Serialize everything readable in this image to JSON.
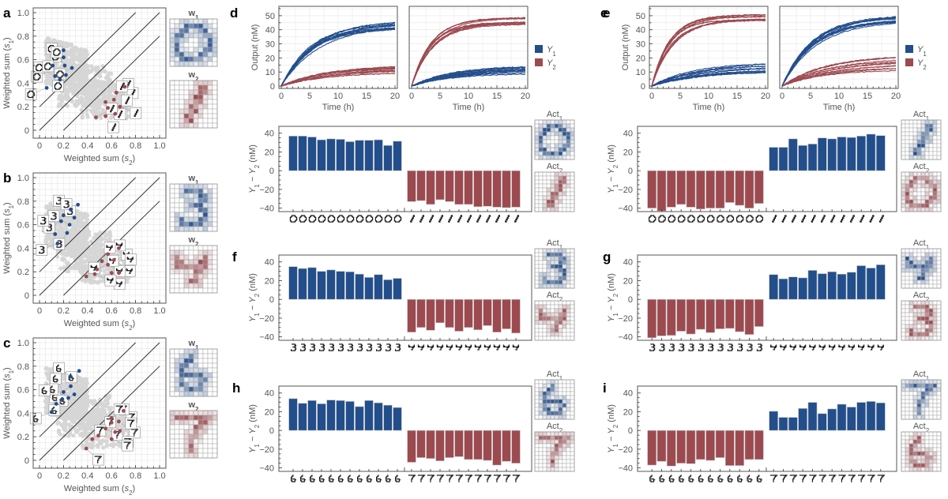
{
  "colors": {
    "blue": "#234e8c",
    "red": "#9c4a50",
    "grey_cloud": "#d6d6d6",
    "grid": "#e6e6e6",
    "axis": "#555555"
  },
  "chart_data": [
    {
      "id": "a",
      "panel_label": "a",
      "type": "scatter",
      "xlabel": "Weighted sum (s2)",
      "ylabel": "Weighted sum (s1)",
      "xlim": [
        0,
        1.0
      ],
      "ylim": [
        0,
        1.0
      ],
      "xticks": [
        "0",
        "0.2",
        "0.4",
        "0.6",
        "0.8",
        "1.0"
      ],
      "yticks": [
        "0",
        "0.2",
        "0.4",
        "0.6",
        "0.8",
        "1.0"
      ],
      "diagonals": [
        {
          "intercept": 0.2
        },
        {
          "intercept": 0
        },
        {
          "intercept": -0.2
        }
      ],
      "grid": true,
      "series": [
        {
          "name": "digit 0",
          "color": "blue",
          "digit": "0",
          "points": [
            [
              0.2,
              0.68
            ],
            [
              0.2,
              0.62
            ],
            [
              0.11,
              0.55
            ],
            [
              0.21,
              0.55
            ],
            [
              0.27,
              0.53
            ],
            [
              0.13,
              0.46
            ],
            [
              0.22,
              0.47
            ],
            [
              0.17,
              0.43
            ],
            [
              0.06,
              0.36
            ]
          ]
        },
        {
          "name": "digit 1",
          "color": "red",
          "digit": "1",
          "points": [
            [
              0.71,
              0.37
            ],
            [
              0.64,
              0.32
            ],
            [
              0.55,
              0.24
            ],
            [
              0.62,
              0.26
            ],
            [
              0.57,
              0.19
            ],
            [
              0.47,
              0.11
            ],
            [
              0.55,
              0.12
            ],
            [
              0.63,
              0.14
            ],
            [
              0.67,
              0.2
            ]
          ]
        }
      ],
      "weights": [
        {
          "label": "w1",
          "digit": "0",
          "color": "blue"
        },
        {
          "label": "w2",
          "digit": "1",
          "color": "red"
        }
      ]
    },
    {
      "id": "b",
      "panel_label": "b",
      "type": "scatter",
      "xlabel": "Weighted sum (s2)",
      "ylabel": "Weighted sum (s1)",
      "xlim": [
        0,
        1.0
      ],
      "ylim": [
        0,
        1.0
      ],
      "xticks": [
        "0",
        "0.2",
        "0.4",
        "0.6",
        "0.8",
        "1.0"
      ],
      "yticks": [
        "0",
        "0.2",
        "0.4",
        "0.6",
        "0.8",
        "1.0"
      ],
      "diagonals": [
        {
          "intercept": 0.2
        },
        {
          "intercept": 0
        },
        {
          "intercept": -0.2
        }
      ],
      "grid": true,
      "series": [
        {
          "name": "digit 3",
          "color": "blue",
          "digit": "3",
          "points": [
            [
              0.32,
              0.77
            ],
            [
              0.26,
              0.73
            ],
            [
              0.2,
              0.68
            ],
            [
              0.29,
              0.66
            ],
            [
              0.18,
              0.63
            ],
            [
              0.25,
              0.6
            ],
            [
              0.23,
              0.53
            ],
            [
              0.13,
              0.52
            ],
            [
              0.15,
              0.44
            ]
          ]
        },
        {
          "name": "digit 4",
          "color": "red",
          "digit": "4",
          "points": [
            [
              0.66,
              0.4
            ],
            [
              0.57,
              0.35
            ],
            [
              0.62,
              0.3
            ],
            [
              0.52,
              0.29
            ],
            [
              0.57,
              0.26
            ],
            [
              0.48,
              0.22
            ],
            [
              0.6,
              0.19
            ],
            [
              0.66,
              0.19
            ],
            [
              0.46,
              0.18
            ],
            [
              0.39,
              0.16
            ]
          ]
        }
      ],
      "weights": [
        {
          "label": "w1",
          "digit": "3",
          "color": "blue"
        },
        {
          "label": "w2",
          "digit": "4",
          "color": "red"
        }
      ]
    },
    {
      "id": "c",
      "panel_label": "c",
      "type": "scatter",
      "xlabel": "Weighted sum (s2)",
      "ylabel": "Weighted sum (s1)",
      "xlim": [
        0,
        1.0
      ],
      "ylim": [
        0,
        1.0
      ],
      "xticks": [
        "0",
        "0.2",
        "0.4",
        "0.6",
        "0.8",
        "1.0"
      ],
      "yticks": [
        "0",
        "0.2",
        "0.4",
        "0.6",
        "0.8",
        "1.0"
      ],
      "diagonals": [
        {
          "intercept": 0.2
        },
        {
          "intercept": 0
        },
        {
          "intercept": -0.2
        }
      ],
      "grid": true,
      "series": [
        {
          "name": "digit 6",
          "color": "blue",
          "digit": "6",
          "points": [
            [
              0.33,
              0.76
            ],
            [
              0.26,
              0.71
            ],
            [
              0.26,
              0.63
            ],
            [
              0.2,
              0.58
            ],
            [
              0.29,
              0.56
            ],
            [
              0.24,
              0.53
            ],
            [
              0.19,
              0.52
            ],
            [
              0.14,
              0.48
            ],
            [
              0.1,
              0.41
            ]
          ]
        },
        {
          "name": "digit 7",
          "color": "red",
          "digit": "7",
          "points": [
            [
              0.7,
              0.42
            ],
            [
              0.6,
              0.36
            ],
            [
              0.66,
              0.33
            ],
            [
              0.6,
              0.32
            ],
            [
              0.55,
              0.27
            ],
            [
              0.63,
              0.24
            ],
            [
              0.67,
              0.25
            ],
            [
              0.49,
              0.21
            ],
            [
              0.6,
              0.18
            ],
            [
              0.44,
              0.18
            ],
            [
              0.39,
              0.1
            ]
          ]
        }
      ],
      "weights": [
        {
          "label": "w1",
          "digit": "6",
          "color": "blue"
        },
        {
          "label": "w2",
          "digit": "7",
          "color": "red"
        }
      ]
    },
    {
      "id": "d_lines",
      "panel_label": "d",
      "type": "line",
      "xlabel": "Time (h)",
      "ylabel": "Output (nM)",
      "xlim": [
        0,
        20
      ],
      "ylim": [
        0,
        55
      ],
      "xticks": [
        "0",
        "5",
        "10",
        "15",
        "20"
      ],
      "yticks": [
        "0",
        "10",
        "20",
        "30",
        "40",
        "50"
      ],
      "legend": [
        "Y1",
        "Y2"
      ],
      "legend_position": "right",
      "subplots": [
        {
          "input": "0",
          "Y1_final_range": [
            40,
            46
          ],
          "Y2_final_range": [
            8,
            14
          ],
          "Y1_tau": 6,
          "Y2_tau": 8
        },
        {
          "input": "1",
          "Y1_final_range": [
            7,
            14
          ],
          "Y2_final_range": [
            43,
            49
          ],
          "Y1_tau": 8,
          "Y2_tau": 3.5
        }
      ]
    },
    {
      "id": "e_lines",
      "panel_label": "e",
      "type": "line",
      "xlabel": "Time (h)",
      "ylabel": "Output (nM)",
      "xlim": [
        0,
        20
      ],
      "ylim": [
        0,
        55
      ],
      "xticks": [
        "0",
        "5",
        "10",
        "15",
        "20"
      ],
      "yticks": [
        "0",
        "10",
        "20",
        "30",
        "40",
        "50"
      ],
      "legend": [
        "Y1",
        "Y2"
      ],
      "legend_position": "right",
      "subplots": [
        {
          "input": "0",
          "Y1_final_range": [
            8,
            16
          ],
          "Y2_final_range": [
            46,
            51
          ],
          "Y1_tau": 8,
          "Y2_tau": 3.5
        },
        {
          "input": "1",
          "Y1_final_range": [
            44,
            52
          ],
          "Y2_final_range": [
            10,
            21
          ],
          "Y1_tau": 6,
          "Y2_tau": 8
        }
      ]
    },
    {
      "id": "d_bars",
      "panel_label": "",
      "type": "bar",
      "ylabel": "Y1 − Y2 (nM)",
      "ylim": [
        -42,
        44
      ],
      "yticks": [
        "-40",
        "-20",
        "0",
        "20",
        "40"
      ],
      "categories": [
        "0",
        "0",
        "0",
        "0",
        "0",
        "0",
        "0",
        "0",
        "0",
        "0",
        "0",
        "0",
        "1",
        "1",
        "1",
        "1",
        "1",
        "1",
        "1",
        "1",
        "1",
        "1",
        "1",
        "1"
      ],
      "values": [
        37,
        37,
        36,
        33,
        34,
        33.5,
        31,
        32.5,
        32.5,
        33,
        27,
        31.5,
        -33,
        -32,
        -36,
        -31,
        -33,
        -36,
        -36,
        -38.5,
        -38,
        -39,
        -39.5,
        -39
      ],
      "act": [
        {
          "label": "Act1",
          "digit": "0",
          "color": "blue"
        },
        {
          "label": "Act2",
          "digit": "1",
          "color": "red"
        }
      ]
    },
    {
      "id": "e_bars",
      "panel_label": "",
      "type": "bar",
      "ylabel": "Y1 − Y2 (nM)",
      "ylim": [
        -42,
        44
      ],
      "yticks": [
        "-40",
        "-20",
        "0",
        "20",
        "40"
      ],
      "categories": [
        "0",
        "0",
        "0",
        "0",
        "0",
        "0",
        "0",
        "0",
        "0",
        "0",
        "0",
        "0",
        "1",
        "1",
        "1",
        "1",
        "1",
        "1",
        "1",
        "1",
        "1",
        "1",
        "1",
        "1"
      ],
      "values": [
        -40,
        -43,
        -39,
        -36,
        -39,
        -41,
        -40,
        -40,
        -34,
        -37,
        -40,
        -35,
        25,
        25,
        34,
        27,
        28.5,
        35,
        34,
        36,
        35.5,
        37,
        39,
        37.5
      ],
      "act": [
        {
          "label": "Act1",
          "digit": "1",
          "color": "blue"
        },
        {
          "label": "Act2",
          "digit": "0",
          "color": "red"
        }
      ]
    },
    {
      "id": "f_bars",
      "panel_label": "f",
      "type": "bar",
      "ylabel": "Y1 − Y2 (nM)",
      "ylim": [
        -42,
        44
      ],
      "yticks": [
        "-40",
        "-20",
        "0",
        "20",
        "40"
      ],
      "categories": [
        "3",
        "3",
        "3",
        "3",
        "3",
        "3",
        "3",
        "3",
        "3",
        "3",
        "3",
        "3",
        "4",
        "4",
        "4",
        "4",
        "4",
        "4",
        "4",
        "4",
        "4",
        "4",
        "4",
        "4"
      ],
      "values": [
        35,
        33,
        34,
        30,
        31.5,
        30,
        29.5,
        27,
        23.5,
        26.5,
        21,
        22.5,
        -35,
        -30,
        -33,
        -25,
        -30,
        -34,
        -30,
        -32.5,
        -28,
        -35,
        -31.5,
        -36
      ],
      "act": [
        {
          "label": "Act1",
          "digit": "3",
          "color": "blue"
        },
        {
          "label": "Act2",
          "digit": "4",
          "color": "red"
        }
      ]
    },
    {
      "id": "g_bars",
      "panel_label": "g",
      "type": "bar",
      "ylabel": "Y1 − Y2 (nM)",
      "ylim": [
        -42,
        44
      ],
      "yticks": [
        "-40",
        "-20",
        "0",
        "20",
        "40"
      ],
      "categories": [
        "3",
        "3",
        "3",
        "3",
        "3",
        "3",
        "3",
        "3",
        "3",
        "3",
        "3",
        "3",
        "4",
        "4",
        "4",
        "4",
        "4",
        "4",
        "4",
        "4",
        "4",
        "4",
        "4",
        "4"
      ],
      "values": [
        -41,
        -39,
        -38.5,
        -34,
        -37,
        -32,
        -35.5,
        -31.5,
        -31,
        -34.5,
        -37.5,
        -29,
        26.5,
        22,
        24,
        23,
        31,
        27.5,
        29.5,
        27,
        29,
        36,
        33.5,
        37
      ],
      "act": [
        {
          "label": "Act1",
          "digit": "4",
          "color": "blue"
        },
        {
          "label": "Act2",
          "digit": "3",
          "color": "red"
        }
      ]
    },
    {
      "id": "h_bars",
      "panel_label": "h",
      "type": "bar",
      "ylabel": "Y1 − Y2 (nM)",
      "ylim": [
        -42,
        44
      ],
      "yticks": [
        "-40",
        "-20",
        "0",
        "20",
        "40"
      ],
      "categories": [
        "6",
        "6",
        "6",
        "6",
        "6",
        "6",
        "6",
        "6",
        "6",
        "6",
        "6",
        "6",
        "7",
        "7",
        "7",
        "7",
        "7",
        "7",
        "7",
        "7",
        "7",
        "7",
        "7",
        "7"
      ],
      "values": [
        34,
        29,
        32,
        28.5,
        32.5,
        32,
        31,
        25.5,
        32,
        29.5,
        27,
        24.5,
        -34,
        -29,
        -30,
        -32.5,
        -29,
        -28,
        -31,
        -31,
        -32,
        -37,
        -33,
        -35
      ],
      "act": [
        {
          "label": "Act1",
          "digit": "6",
          "color": "blue"
        },
        {
          "label": "Act2",
          "digit": "7",
          "color": "red"
        }
      ]
    },
    {
      "id": "i_bars",
      "panel_label": "i",
      "type": "bar",
      "ylabel": "Y1 − Y2 (nM)",
      "ylim": [
        -42,
        44
      ],
      "yticks": [
        "-40",
        "-20",
        "0",
        "20",
        "40"
      ],
      "categories": [
        "6",
        "6",
        "6",
        "6",
        "6",
        "6",
        "6",
        "6",
        "6",
        "6",
        "6",
        "6",
        "7",
        "7",
        "7",
        "7",
        "7",
        "7",
        "7",
        "7",
        "7",
        "7",
        "7",
        "7"
      ],
      "values": [
        -37,
        -33,
        -38,
        -35,
        -35.5,
        -31,
        -32,
        -29,
        -37.5,
        -37.5,
        -31,
        -31,
        20.5,
        14,
        14,
        23.5,
        30,
        18,
        23,
        28,
        25,
        30,
        31,
        29.5
      ],
      "act": [
        {
          "label": "Act1",
          "digit": "7",
          "color": "blue"
        },
        {
          "label": "Act2",
          "digit": "6",
          "color": "red"
        }
      ]
    }
  ],
  "digit_patterns": {
    "0": [
      "..........",
      "...####...",
      "..##..##..",
      ".##....##.",
      ".#......#.",
      ".#......#.",
      ".#.....##.",
      ".##...##..",
      "..#####...",
      ".........."
    ],
    "1": [
      "..........",
      "......##..",
      "......##..",
      ".....##...",
      ".....##...",
      "....##....",
      "....##....",
      "...##.....",
      "...##.....",
      ".........."
    ],
    "3": [
      "..........",
      "...####...",
      "......##..",
      "......##..",
      "....###...",
      "......##..",
      ".......#..",
      "..#...##..",
      "..#####...",
      ".........."
    ],
    "4": [
      "..........",
      "..........",
      ".#.....#..",
      ".##...##..",
      ".#######..",
      ".....##...",
      ".....#....",
      "....##....",
      "..........",
      ".........."
    ],
    "6": [
      "..........",
      "....#.....",
      "...##.....",
      "..##......",
      "..#.......",
      "..#####...",
      "..#...##..",
      "..##..#...",
      "...####...",
      ".........."
    ],
    "7": [
      "..........",
      ".########.",
      "......##..",
      ".....##...",
      ".....#....",
      "....##....",
      "....#.....",
      "....#.....",
      "....#.....",
      ".........."
    ]
  }
}
